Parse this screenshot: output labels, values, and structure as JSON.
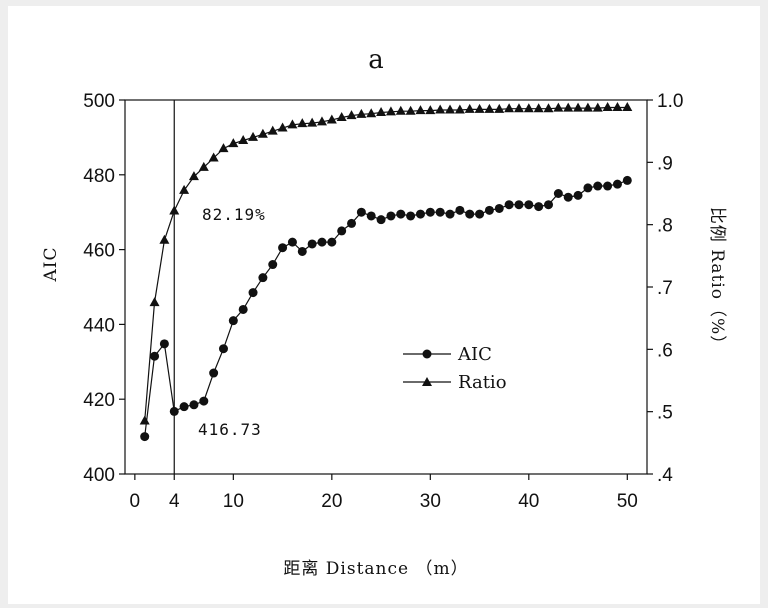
{
  "chart_data": {
    "type": "line",
    "title": "a",
    "xlabel": "距离   Distance （m）",
    "ylabel": "AIC",
    "y2label": "比例 Ratio（%）",
    "xlim": [
      -1,
      52
    ],
    "xticks": [
      "0",
      "4",
      "10",
      "20",
      "30",
      "40",
      "50"
    ],
    "xtick_values": [
      0,
      4,
      10,
      20,
      30,
      40,
      50
    ],
    "ylim": [
      400,
      500
    ],
    "yticks": [
      "400",
      "420",
      "440",
      "460",
      "480",
      "500"
    ],
    "ytick_values": [
      400,
      420,
      440,
      460,
      480,
      500
    ],
    "y2lim": [
      0.4,
      1.0
    ],
    "y2ticks": [
      ".4",
      ".5",
      ".6",
      ".7",
      ".8",
      ".9",
      "1.0"
    ],
    "y2tick_values": [
      0.4,
      0.5,
      0.6,
      0.7,
      0.8,
      0.9,
      1.0
    ],
    "vline_x": 4,
    "legend_position": "center-right",
    "series": [
      {
        "name": "AIC",
        "marker": "circle",
        "axis": "left",
        "x": [
          1,
          2,
          3,
          4,
          5,
          6,
          7,
          8,
          9,
          10,
          11,
          12,
          13,
          14,
          15,
          16,
          17,
          18,
          19,
          20,
          21,
          22,
          23,
          24,
          25,
          26,
          27,
          28,
          29,
          30,
          31,
          32,
          33,
          34,
          35,
          36,
          37,
          38,
          39,
          40,
          41,
          42,
          43,
          44,
          45,
          46,
          47,
          48,
          49,
          50
        ],
        "values": [
          410.0,
          431.5,
          434.8,
          416.73,
          418.0,
          418.5,
          419.5,
          427.0,
          433.5,
          441.0,
          444.0,
          448.5,
          452.5,
          456.0,
          460.5,
          462.0,
          459.5,
          461.5,
          462.0,
          462.0,
          465.0,
          467.0,
          470.0,
          469.0,
          468.0,
          469.0,
          469.5,
          469.0,
          469.5,
          470.0,
          470.0,
          469.5,
          470.5,
          469.5,
          469.5,
          470.5,
          471.0,
          472.0,
          472.0,
          472.0,
          471.5,
          472.0,
          475.0,
          474.0,
          474.5,
          476.5,
          477.0,
          477.0,
          477.5,
          478.5
        ]
      },
      {
        "name": "Ratio",
        "marker": "triangle",
        "axis": "right",
        "x": [
          1,
          2,
          3,
          4,
          5,
          6,
          7,
          8,
          9,
          10,
          11,
          12,
          13,
          14,
          15,
          16,
          17,
          18,
          19,
          20,
          21,
          22,
          23,
          24,
          25,
          26,
          27,
          28,
          29,
          30,
          31,
          32,
          33,
          34,
          35,
          36,
          37,
          38,
          39,
          40,
          41,
          42,
          43,
          44,
          45,
          46,
          47,
          48,
          49,
          50
        ],
        "values": [
          0.485,
          0.675,
          0.775,
          0.8219,
          0.855,
          0.877,
          0.892,
          0.907,
          0.922,
          0.93,
          0.935,
          0.94,
          0.945,
          0.95,
          0.955,
          0.96,
          0.962,
          0.963,
          0.965,
          0.968,
          0.972,
          0.975,
          0.977,
          0.978,
          0.98,
          0.981,
          0.982,
          0.982,
          0.983,
          0.983,
          0.984,
          0.984,
          0.984,
          0.985,
          0.985,
          0.985,
          0.985,
          0.986,
          0.986,
          0.986,
          0.986,
          0.986,
          0.987,
          0.987,
          0.987,
          0.987,
          0.987,
          0.988,
          0.988,
          0.988
        ]
      }
    ],
    "annotations": [
      "82.19%",
      "416.73"
    ]
  }
}
